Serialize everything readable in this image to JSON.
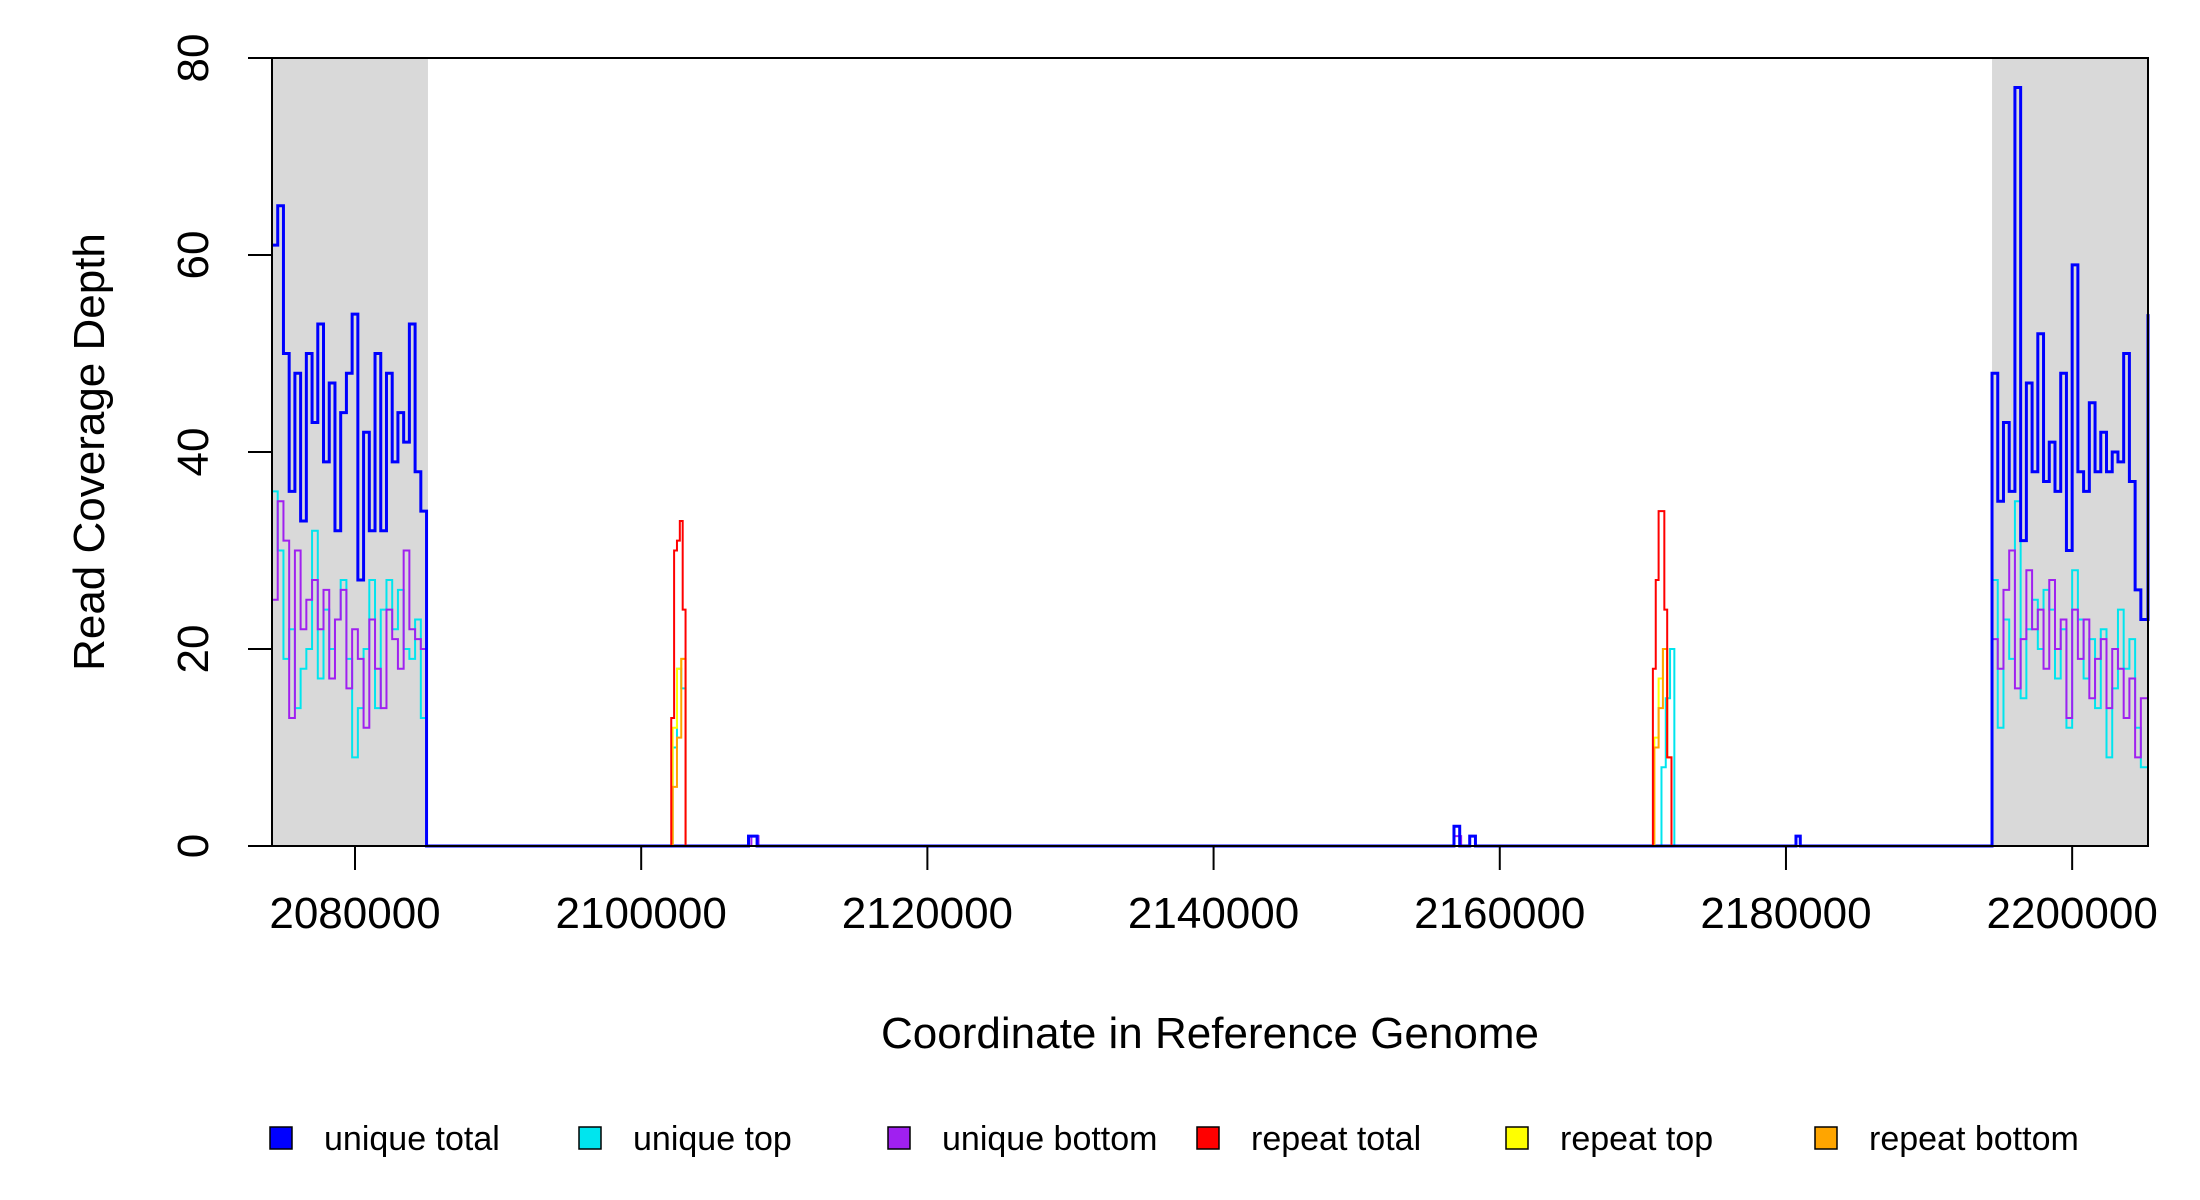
{
  "chart_data": {
    "type": "line",
    "xlabel": "Coordinate in Reference Genome",
    "ylabel": "Read Coverage Depth",
    "xlim": [
      2074200,
      2205300
    ],
    "ylim": [
      0,
      80
    ],
    "x_ticks": [
      2080000,
      2100000,
      2120000,
      2140000,
      2160000,
      2180000,
      2200000
    ],
    "y_ticks": [
      0,
      20,
      40,
      60,
      80
    ],
    "grid": false,
    "legend_position": "bottom",
    "shaded_regions": [
      {
        "start": 2074200,
        "end": 2085100,
        "color": "#d9d9d9"
      },
      {
        "start": 2194400,
        "end": 2205300,
        "color": "#d9d9d9"
      }
    ],
    "series": [
      {
        "name": "unique top",
        "color": "#00e5ee",
        "x": [
          2074200,
          2074600,
          2075000,
          2075400,
          2075800,
          2076200,
          2076600,
          2077000,
          2077400,
          2077800,
          2078200,
          2078600,
          2079000,
          2079400,
          2079800,
          2080200,
          2080600,
          2081000,
          2081400,
          2081800,
          2082200,
          2082600,
          2083000,
          2083400,
          2083800,
          2084200,
          2084600,
          2085000,
          2085100,
          2101900,
          2102200,
          2102500,
          2102800,
          2103100,
          2171000,
          2171300,
          2171600,
          2171900,
          2172200,
          2194400,
          2194800,
          2195200,
          2195600,
          2196000,
          2196400,
          2196800,
          2197200,
          2197600,
          2198000,
          2198400,
          2198800,
          2199200,
          2199600,
          2200000,
          2200400,
          2200800,
          2201200,
          2201600,
          2202000,
          2202400,
          2202800,
          2203200,
          2203600,
          2204000,
          2204400,
          2204800,
          2205300
        ],
        "values": [
          36,
          30,
          19,
          22,
          14,
          18,
          20,
          32,
          17,
          24,
          20,
          23,
          27,
          19,
          9,
          14,
          20,
          27,
          14,
          24,
          27,
          22,
          26,
          20,
          19,
          23,
          13,
          0,
          0,
          0,
          10,
          18,
          16,
          0,
          0,
          8,
          15,
          20,
          0,
          27,
          12,
          23,
          19,
          35,
          15,
          22,
          25,
          20,
          26,
          24,
          17,
          22,
          12,
          28,
          23,
          17,
          21,
          14,
          22,
          9,
          16,
          24,
          18,
          21,
          12,
          8,
          0
        ],
        "step": true
      },
      {
        "name": "unique bottom",
        "color": "#a020f0",
        "x": [
          2074200,
          2074600,
          2075000,
          2075400,
          2075800,
          2076200,
          2076600,
          2077000,
          2077400,
          2077800,
          2078200,
          2078600,
          2079000,
          2079400,
          2079800,
          2080200,
          2080600,
          2081000,
          2081400,
          2081800,
          2082200,
          2082600,
          2083000,
          2083400,
          2083800,
          2084200,
          2084600,
          2085000,
          2085100,
          2107700,
          2108200,
          2156800,
          2157300,
          2194400,
          2194800,
          2195200,
          2195600,
          2196000,
          2196400,
          2196800,
          2197200,
          2197600,
          2198000,
          2198400,
          2198800,
          2199200,
          2199600,
          2200000,
          2200400,
          2200800,
          2201200,
          2201600,
          2202000,
          2202400,
          2202800,
          2203200,
          2203600,
          2204000,
          2204400,
          2204800,
          2205300
        ],
        "values": [
          25,
          35,
          31,
          13,
          30,
          22,
          25,
          27,
          22,
          26,
          17,
          23,
          26,
          16,
          22,
          19,
          12,
          23,
          18,
          14,
          24,
          21,
          18,
          30,
          22,
          21,
          20,
          0,
          0,
          1,
          0,
          1,
          0,
          21,
          18,
          26,
          30,
          16,
          21,
          28,
          22,
          24,
          18,
          27,
          20,
          23,
          13,
          24,
          19,
          23,
          15,
          19,
          21,
          14,
          20,
          18,
          13,
          17,
          9,
          15,
          0
        ],
        "step": true
      },
      {
        "name": "unique total",
        "color": "#0000ff",
        "x": [
          2074200,
          2074600,
          2075000,
          2075400,
          2075800,
          2076200,
          2076600,
          2077000,
          2077400,
          2077800,
          2078200,
          2078600,
          2079000,
          2079400,
          2079800,
          2080200,
          2080600,
          2081000,
          2081400,
          2081800,
          2082200,
          2082600,
          2083000,
          2083400,
          2083800,
          2084200,
          2084600,
          2085000,
          2085100,
          2107500,
          2108100,
          2156800,
          2157200,
          2157900,
          2158300,
          2180700,
          2181000,
          2194400,
          2194800,
          2195200,
          2195600,
          2196000,
          2196400,
          2196800,
          2197200,
          2197600,
          2198000,
          2198400,
          2198800,
          2199200,
          2199600,
          2200000,
          2200400,
          2200800,
          2201200,
          2201600,
          2202000,
          2202400,
          2202800,
          2203200,
          2203600,
          2204000,
          2204400,
          2204800,
          2205300
        ],
        "values": [
          61,
          65,
          50,
          36,
          48,
          33,
          50,
          43,
          53,
          39,
          47,
          32,
          44,
          48,
          54,
          27,
          42,
          32,
          50,
          32,
          48,
          39,
          44,
          41,
          53,
          38,
          34,
          0,
          0,
          1,
          0,
          2,
          0,
          1,
          0,
          1,
          0,
          48,
          35,
          43,
          36,
          77,
          31,
          47,
          38,
          52,
          37,
          41,
          36,
          48,
          30,
          59,
          38,
          36,
          45,
          38,
          42,
          38,
          40,
          39,
          50,
          37,
          26,
          23,
          54
        ],
        "step": true
      },
      {
        "name": "repeat top",
        "color": "#ffff00",
        "x": [
          2101900,
          2102200,
          2102500,
          2102800,
          2103100,
          2170500,
          2170800,
          2171100,
          2171400,
          2171700,
          2172000
        ],
        "values": [
          0,
          12,
          18,
          19,
          0,
          0,
          11,
          17,
          20,
          9,
          0
        ],
        "step": true
      },
      {
        "name": "repeat bottom",
        "color": "#ffa500",
        "x": [
          2074200,
          2101900,
          2102200,
          2102500,
          2102800,
          2103100,
          2170500,
          2170800,
          2171100,
          2171400,
          2171700,
          2172000,
          2205300
        ],
        "values": [
          0,
          0,
          6,
          11,
          19,
          0,
          0,
          10,
          14,
          20,
          9,
          0,
          0
        ],
        "step": true
      },
      {
        "name": "repeat total",
        "color": "#ff0000",
        "x": [
          2101900,
          2102100,
          2102300,
          2102500,
          2102700,
          2102900,
          2103100,
          2170500,
          2170700,
          2170900,
          2171100,
          2171300,
          2171500,
          2171700,
          2172000
        ],
        "values": [
          0,
          13,
          30,
          31,
          33,
          24,
          0,
          0,
          18,
          27,
          34,
          34,
          24,
          9,
          0
        ],
        "step": true
      }
    ]
  },
  "legend": {
    "items": [
      {
        "label": "unique total",
        "color": "#0000ff"
      },
      {
        "label": "unique top",
        "color": "#00e5ee"
      },
      {
        "label": "unique bottom",
        "color": "#a020f0"
      },
      {
        "label": "repeat total",
        "color": "#ff0000"
      },
      {
        "label": "repeat top",
        "color": "#ffff00"
      },
      {
        "label": "repeat bottom",
        "color": "#ffa500"
      }
    ]
  }
}
